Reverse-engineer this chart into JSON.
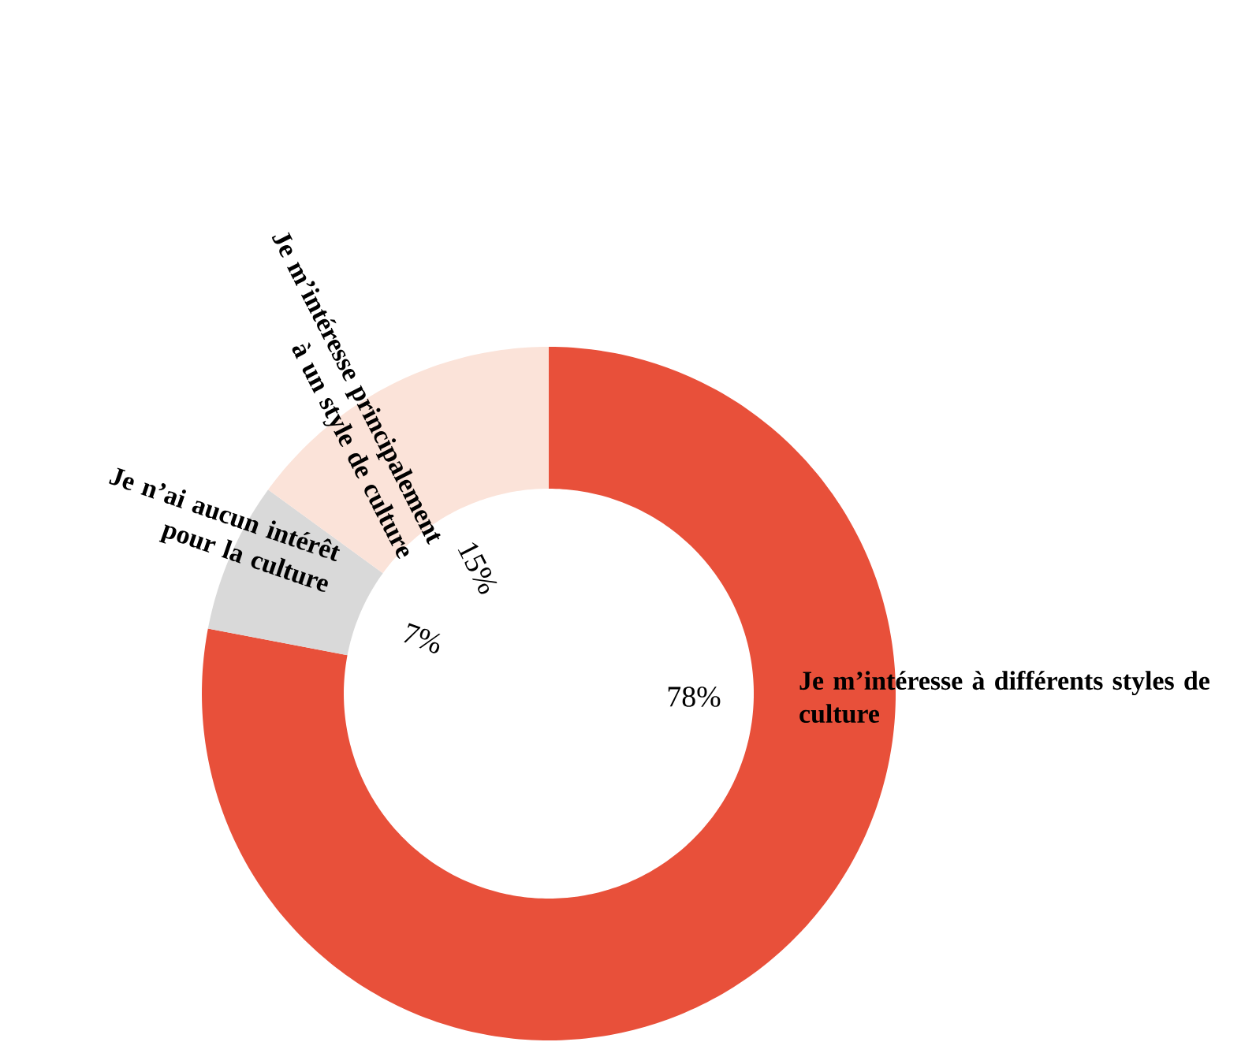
{
  "chart_data": {
    "type": "donut",
    "categories": [
      "Je m’intéresse à différents styles de culture",
      "Je n’ai aucun intérêt pour la culture",
      "Je m’intéresse principalement à un style de culture"
    ],
    "values": [
      78,
      7,
      15
    ],
    "colors": [
      "#e8503a",
      "#d9d9d9",
      "#fbe3d9"
    ],
    "value_labels": [
      "78%",
      "7%",
      "15%"
    ]
  }
}
